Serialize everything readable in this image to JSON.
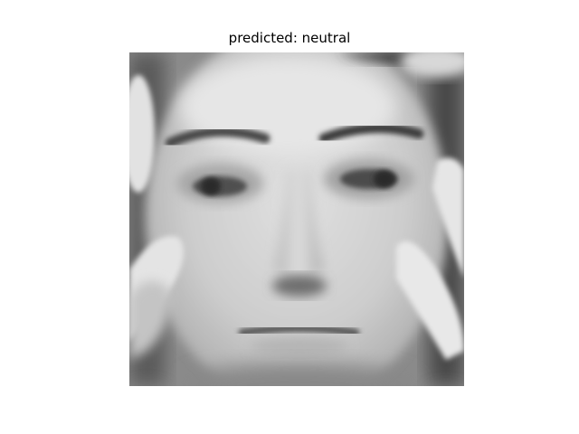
{
  "figure": {
    "title": "predicted: neutral"
  },
  "image": {
    "description_name": "grayscale face photo",
    "palette": {
      "background": "#ffffff",
      "skin": "#c8c8c8",
      "dark": "#2c2c2c"
    }
  }
}
